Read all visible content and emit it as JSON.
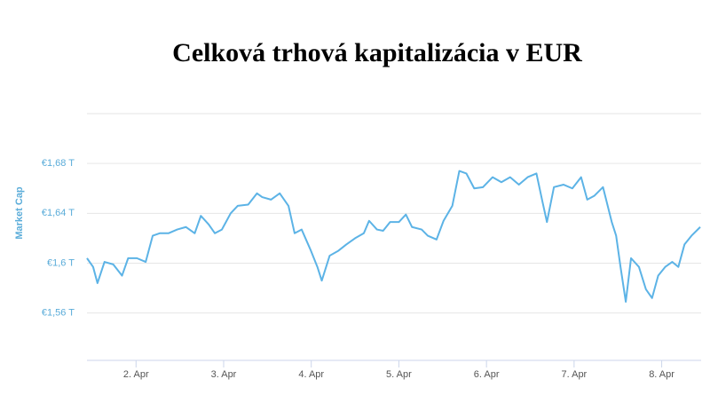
{
  "chart_data": {
    "type": "line",
    "title": "Celková trhová kapitalizácia v EUR",
    "y_label": "Market Cap",
    "x": [
      1.44,
      1.51,
      1.56,
      1.64,
      1.74,
      1.84,
      1.91,
      2.01,
      2.11,
      2.19,
      2.27,
      2.37,
      2.47,
      2.57,
      2.67,
      2.74,
      2.83,
      2.9,
      2.98,
      3.08,
      3.16,
      3.28,
      3.38,
      3.44,
      3.54,
      3.64,
      3.74,
      3.81,
      3.89,
      3.99,
      4.07,
      4.12,
      4.21,
      4.31,
      4.4,
      4.5,
      4.6,
      4.66,
      4.75,
      4.82,
      4.9,
      5.0,
      5.08,
      5.15,
      5.26,
      5.33,
      5.43,
      5.51,
      5.61,
      5.69,
      5.77,
      5.86,
      5.96,
      6.07,
      6.17,
      6.27,
      6.37,
      6.47,
      6.57,
      6.64,
      6.69,
      6.77,
      6.88,
      6.98,
      7.08,
      7.15,
      7.23,
      7.33,
      7.43,
      7.48,
      7.53,
      7.59,
      7.65,
      7.74,
      7.82,
      7.89,
      7.96,
      8.04,
      8.12,
      8.19,
      8.26,
      8.34,
      8.44
    ],
    "series": [
      {
        "name": "Market Cap",
        "color": "#5cb3e6",
        "values": [
          1.604,
          1.597,
          1.584,
          1.601,
          1.599,
          1.59,
          1.604,
          1.604,
          1.601,
          1.622,
          1.624,
          1.624,
          1.627,
          1.629,
          1.624,
          1.638,
          1.631,
          1.624,
          1.627,
          1.64,
          1.646,
          1.647,
          1.656,
          1.653,
          1.651,
          1.656,
          1.646,
          1.624,
          1.627,
          1.611,
          1.597,
          1.586,
          1.606,
          1.61,
          1.615,
          1.62,
          1.624,
          1.634,
          1.627,
          1.626,
          1.633,
          1.633,
          1.639,
          1.629,
          1.627,
          1.622,
          1.619,
          1.634,
          1.646,
          1.674,
          1.672,
          1.66,
          1.661,
          1.669,
          1.665,
          1.669,
          1.663,
          1.669,
          1.672,
          1.649,
          1.633,
          1.661,
          1.663,
          1.66,
          1.669,
          1.651,
          1.654,
          1.661,
          1.633,
          1.622,
          1.597,
          1.569,
          1.604,
          1.597,
          1.579,
          1.572,
          1.59,
          1.597,
          1.601,
          1.597,
          1.615,
          1.622,
          1.629
        ]
      }
    ],
    "xlim": [
      1.44,
      8.45
    ],
    "xticks": [
      {
        "value": 2,
        "label": "2. Apr"
      },
      {
        "value": 3,
        "label": "3. Apr"
      },
      {
        "value": 4,
        "label": "4. Apr"
      },
      {
        "value": 5,
        "label": "5. Apr"
      },
      {
        "value": 6,
        "label": "6. Apr"
      },
      {
        "value": 7,
        "label": "7. Apr"
      },
      {
        "value": 8,
        "label": "8. Apr"
      }
    ],
    "ylim": [
      1.522,
      1.72
    ],
    "yticks": [
      {
        "value": 1.56,
        "label": "€1,56 T"
      },
      {
        "value": 1.6,
        "label": "€1,6 T"
      },
      {
        "value": 1.64,
        "label": "€1,64 T"
      },
      {
        "value": 1.68,
        "label": "€1,68 T"
      }
    ],
    "grid": true
  }
}
